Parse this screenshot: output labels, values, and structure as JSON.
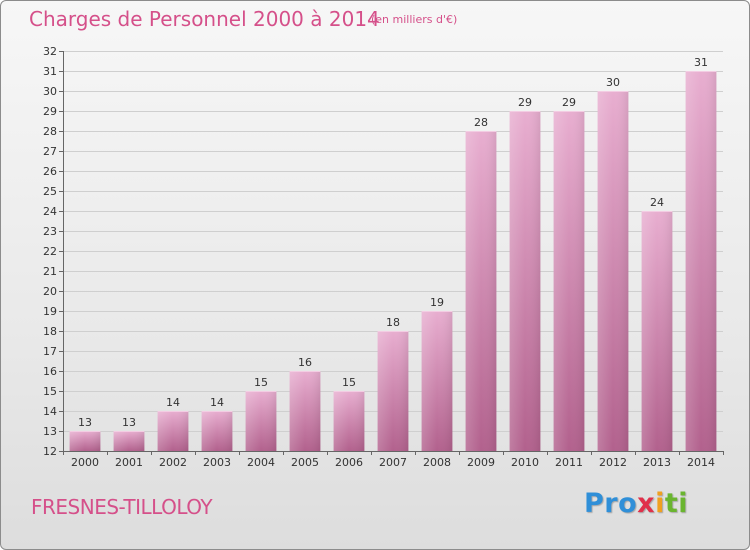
{
  "header": {
    "title": "Charges de Personnel 2000 à 2014",
    "subtitle": "(en milliers d'€)"
  },
  "footer": {
    "place": "FRESNES-TILLOLOY",
    "logo_parts": [
      "Pro",
      "x",
      "i",
      "ti"
    ]
  },
  "colors": {
    "bar_top": "#e8aed0",
    "bar_bottom": "#b2618d",
    "text_accent": "#d5508a"
  },
  "chart_data": {
    "type": "bar",
    "title": "Charges de Personnel 2000 à 2014",
    "subtitle": "(en milliers d'€)",
    "xlabel": "",
    "ylabel": "",
    "ylim": [
      12,
      32
    ],
    "yticks": [
      12,
      13,
      14,
      15,
      16,
      17,
      18,
      19,
      20,
      21,
      22,
      23,
      24,
      25,
      26,
      27,
      28,
      29,
      30,
      31,
      32
    ],
    "grid": true,
    "categories": [
      "2000",
      "2001",
      "2002",
      "2003",
      "2004",
      "2005",
      "2006",
      "2007",
      "2008",
      "2009",
      "2010",
      "2011",
      "2012",
      "2013",
      "2014"
    ],
    "values": [
      13,
      13,
      14,
      14,
      15,
      16,
      15,
      18,
      19,
      28,
      29,
      29,
      30,
      24,
      31
    ]
  }
}
